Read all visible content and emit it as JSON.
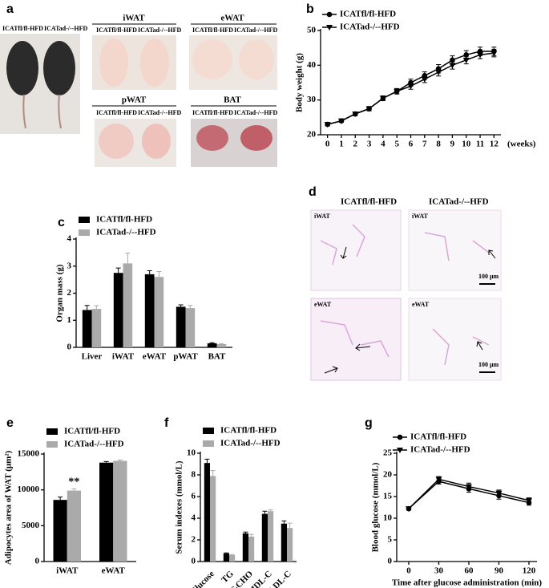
{
  "photos": {
    "label": "a",
    "mouse_labels": [
      "ICATfl/fl-HFD",
      "ICATad-/--HFD"
    ],
    "tissues": [
      {
        "name": "iWAT",
        "groups": [
          "ICATfl/fl-HFD",
          "ICATad-/--HFD"
        ]
      },
      {
        "name": "eWAT",
        "groups": [
          "ICATfl/fl-HFD",
          "ICATad-/--HFD"
        ]
      },
      {
        "name": "pWAT",
        "groups": [
          "ICATfl/fl-HFD",
          "ICATad-/--HFD"
        ]
      },
      {
        "name": "BAT",
        "groups": [
          "ICATfl/fl-HFD",
          "ICATad-/--HFD"
        ]
      }
    ]
  },
  "histology": {
    "label": "d",
    "columns": [
      "ICATfl/fl-HFD",
      "ICATad-/--HFD"
    ],
    "rows": [
      [
        "iWAT",
        "iWAT"
      ],
      [
        "eWAT",
        "eWAT"
      ]
    ],
    "scale": "100 μm"
  },
  "chart_data": [
    {
      "type": "line",
      "label": "b",
      "ylabel": "Body weight (g)",
      "xlabel": "(weeks)",
      "x": [
        0,
        1,
        2,
        3,
        4,
        5,
        6,
        7,
        8,
        9,
        10,
        11,
        12
      ],
      "xlim": [
        -0.5,
        12.5
      ],
      "xticks": [
        0,
        1,
        2,
        3,
        4,
        5,
        6,
        7,
        8,
        9,
        10,
        11,
        12
      ],
      "ylim": [
        20,
        50
      ],
      "yticks": [
        20,
        30,
        40,
        50
      ],
      "series": [
        {
          "name": "ICATfl/fl-HFD",
          "color": "#000000",
          "marker": "circle",
          "values": [
            23,
            24,
            26,
            27.5,
            30.5,
            32.5,
            35,
            37,
            39,
            41.5,
            43,
            44,
            44
          ],
          "errors": [
            0.4,
            0.4,
            0.5,
            0.6,
            0.7,
            0.8,
            1,
            1.1,
            1.2,
            1.2,
            1.2,
            1.2,
            1.2
          ]
        },
        {
          "name": "ICATad-/--HFD",
          "color": "#000000",
          "marker": "triangle",
          "values": [
            23,
            24,
            26,
            27.5,
            30.5,
            32.5,
            34,
            36,
            38,
            40,
            41.5,
            43,
            43.5
          ],
          "errors": [
            0.4,
            0.4,
            0.5,
            0.6,
            0.6,
            0.7,
            0.9,
            1,
            1.1,
            1.1,
            1.1,
            1.1,
            1.1
          ]
        }
      ]
    },
    {
      "type": "bar",
      "label": "c",
      "ylabel": "Organ mass (g)",
      "categories": [
        "Liver",
        "iWAT",
        "eWAT",
        "pWAT",
        "BAT"
      ],
      "ylim": [
        0,
        4
      ],
      "yticks": [
        0,
        1,
        2,
        3,
        4
      ],
      "series": [
        {
          "name": "ICATfl/fl-HFD",
          "color": "#000000",
          "values": [
            1.38,
            2.75,
            2.7,
            1.5,
            0.15
          ],
          "errors": [
            0.17,
            0.18,
            0.13,
            0.07,
            0.02
          ]
        },
        {
          "name": "ICATad-/--HFD",
          "color": "#aaaaaa",
          "values": [
            1.42,
            3.1,
            2.6,
            1.45,
            0.12
          ],
          "errors": [
            0.12,
            0.38,
            0.2,
            0.1,
            0.02
          ]
        }
      ]
    },
    {
      "type": "bar",
      "label": "e",
      "ylabel": "Adipocytes area of WAT (μm²)",
      "annotation": "**",
      "categories": [
        "iWAT",
        "eWAT"
      ],
      "ylim": [
        0,
        15000
      ],
      "yticks": [
        0,
        5000,
        10000,
        15000
      ],
      "series": [
        {
          "name": "ICATfl/fl-HFD",
          "color": "#000000",
          "values": [
            8600,
            13800
          ],
          "errors": [
            400,
            150
          ]
        },
        {
          "name": "ICATad-/--HFD",
          "color": "#aaaaaa",
          "values": [
            9900,
            14050
          ],
          "errors": [
            250,
            120
          ]
        }
      ]
    },
    {
      "type": "bar",
      "label": "f",
      "ylabel": "Serum indexes (mmol/L)",
      "categories": [
        "Glucose",
        "TG",
        "T-CHO",
        "HDL-C",
        "LDL-C"
      ],
      "ylim": [
        0,
        10
      ],
      "yticks": [
        0,
        2,
        4,
        6,
        8,
        10
      ],
      "series": [
        {
          "name": "ICATfl/fl-HFD",
          "color": "#000000",
          "values": [
            9.1,
            0.75,
            2.6,
            4.4,
            3.5
          ],
          "errors": [
            0.35,
            0.05,
            0.12,
            0.25,
            0.25
          ]
        },
        {
          "name": "ICATad-/--HFD",
          "color": "#aaaaaa",
          "values": [
            7.9,
            0.6,
            2.3,
            4.65,
            3.1
          ],
          "errors": [
            0.5,
            0.05,
            0.2,
            0.12,
            0.45
          ]
        }
      ]
    },
    {
      "type": "line",
      "label": "g",
      "ylabel": "Blood glucose (mmol/L)",
      "xlabel": "Time after glucose administration (min)",
      "x": [
        0,
        30,
        60,
        90,
        120
      ],
      "xlim": [
        -12,
        128
      ],
      "xticks": [
        0,
        30,
        60,
        90,
        120
      ],
      "ylim": [
        0,
        25
      ],
      "yticks": [
        0,
        5,
        10,
        15,
        20,
        25
      ],
      "series": [
        {
          "name": "ICATfl/fl-HFD",
          "color": "#000000",
          "marker": "circle",
          "values": [
            12.2,
            18.5,
            16.8,
            15.2,
            13.6
          ],
          "errors": [
            0.3,
            0.6,
            0.8,
            0.8,
            0.6
          ]
        },
        {
          "name": "ICATad-/--HFD",
          "color": "#000000",
          "marker": "triangle",
          "values": [
            12.2,
            19,
            17.3,
            15.8,
            14.1
          ],
          "errors": [
            0.3,
            0.6,
            0.8,
            0.7,
            0.6
          ]
        }
      ]
    }
  ]
}
